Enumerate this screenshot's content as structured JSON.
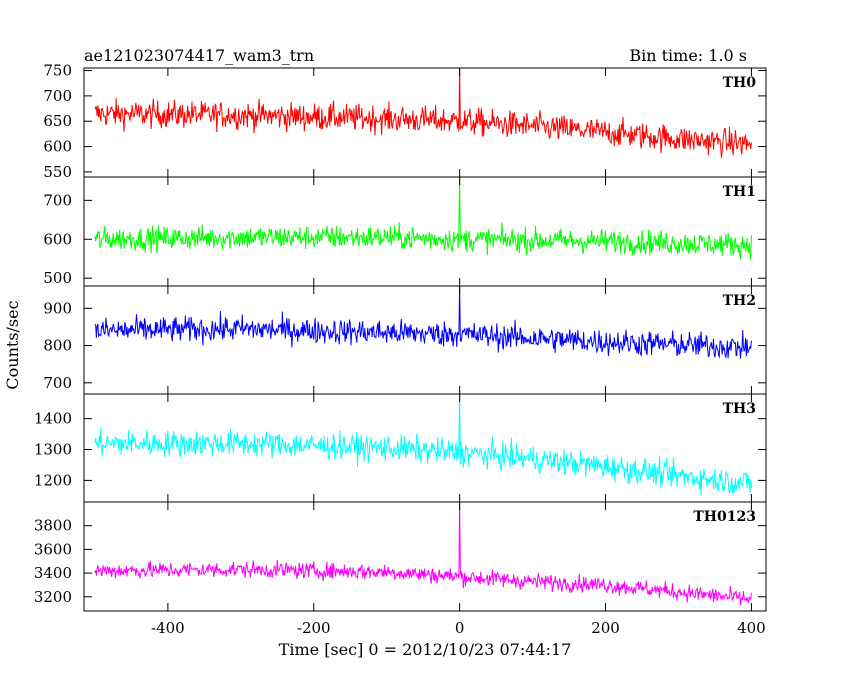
{
  "header": {
    "title": "ae121023074417_wam3_trn",
    "bin_time": "Bin time: 1.0 s"
  },
  "chart_data": {
    "type": "line",
    "title": "ae121023074417_wam3_trn",
    "subtitle": "Bin time: 1.0 s",
    "xlabel": "Time [sec] 0 = 2012/10/23 07:44:17",
    "ylabel": "Counts/sec",
    "xlim": [
      -515,
      420
    ],
    "x_ticks": [
      -400,
      -200,
      0,
      200,
      400
    ],
    "x_range": [
      -500,
      400
    ],
    "bin_time_s": 1.0,
    "panels": [
      {
        "name": "TH0",
        "color": "#ff0000",
        "ylim": [
          540,
          755
        ],
        "y_ticks": [
          550,
          600,
          650,
          700,
          750
        ],
        "trend_points": [
          [
            -500,
            665
          ],
          [
            -300,
            662
          ],
          [
            -100,
            655
          ],
          [
            0,
            650
          ],
          [
            100,
            640
          ],
          [
            200,
            628
          ],
          [
            300,
            615
          ],
          [
            400,
            605
          ]
        ],
        "noise_amplitude": 35,
        "peak": {
          "x": 0,
          "y": 755
        }
      },
      {
        "name": "TH1",
        "color": "#00ff00",
        "ylim": [
          480,
          760
        ],
        "y_ticks": [
          500,
          600,
          700
        ],
        "trend_points": [
          [
            -500,
            600
          ],
          [
            -300,
            605
          ],
          [
            -100,
            605
          ],
          [
            0,
            600
          ],
          [
            200,
            595
          ],
          [
            400,
            585
          ]
        ],
        "noise_amplitude": 40,
        "peak": {
          "x": 0,
          "y": 760
        }
      },
      {
        "name": "TH2",
        "color": "#0000ff",
        "ylim": [
          670,
          960
        ],
        "y_ticks": [
          700,
          800,
          900
        ],
        "trend_points": [
          [
            -500,
            840
          ],
          [
            -300,
            845
          ],
          [
            -100,
            835
          ],
          [
            0,
            830
          ],
          [
            200,
            810
          ],
          [
            400,
            795
          ]
        ],
        "noise_amplitude": 45,
        "peak": {
          "x": 0,
          "y": 960
        }
      },
      {
        "name": "TH3",
        "color": "#00ffff",
        "ylim": [
          1130,
          1480
        ],
        "y_ticks": [
          1200,
          1300,
          1400
        ],
        "trend_points": [
          [
            -500,
            1320
          ],
          [
            -300,
            1320
          ],
          [
            -100,
            1305
          ],
          [
            0,
            1290
          ],
          [
            100,
            1270
          ],
          [
            200,
            1245
          ],
          [
            300,
            1215
          ],
          [
            400,
            1190
          ]
        ],
        "noise_amplitude": 55,
        "peak": {
          "x": 0,
          "y": 1480
        }
      },
      {
        "name": "TH0123",
        "color": "#ff00ff",
        "ylim": [
          3080,
          4000
        ],
        "y_ticks": [
          3200,
          3400,
          3600,
          3800
        ],
        "trend_points": [
          [
            -500,
            3420
          ],
          [
            -300,
            3430
          ],
          [
            -100,
            3410
          ],
          [
            0,
            3370
          ],
          [
            100,
            3330
          ],
          [
            200,
            3300
          ],
          [
            300,
            3240
          ],
          [
            400,
            3180
          ]
        ],
        "noise_amplitude": 90,
        "peak": {
          "x": 0,
          "y": 4000
        }
      }
    ]
  }
}
